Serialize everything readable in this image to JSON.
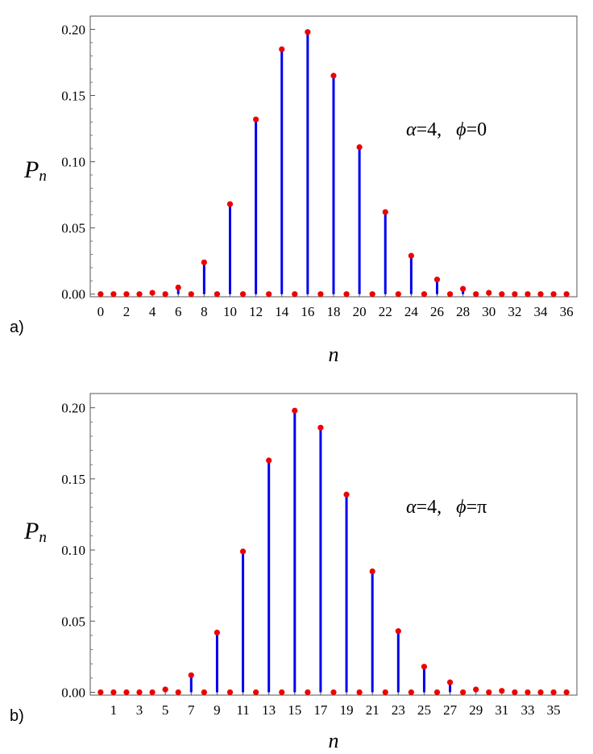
{
  "chart_data": [
    {
      "type": "stem",
      "panel_label": "a)",
      "annotation": {
        "alpha": "α",
        "alpha_value": "=4,",
        "phi": "ϕ",
        "phi_value": "=0"
      },
      "xlabel": "n",
      "ylabel": {
        "main": "P",
        "sub": "n"
      },
      "xlim": [
        -0.8,
        36.8
      ],
      "ylim": [
        -0.002,
        0.21
      ],
      "x_ticks": [
        0,
        2,
        4,
        6,
        8,
        10,
        12,
        14,
        16,
        18,
        20,
        22,
        24,
        26,
        28,
        30,
        32,
        34,
        36
      ],
      "x_tick_labels": [
        "0",
        "2",
        "4",
        "6",
        "8",
        "10",
        "12",
        "14",
        "16",
        "18",
        "20",
        "22",
        "24",
        "26",
        "28",
        "30",
        "32",
        "34",
        "36"
      ],
      "y_ticks": [
        0.0,
        0.05,
        0.1,
        0.15,
        0.2
      ],
      "y_tick_labels": [
        "0.00",
        "0.05",
        "0.10",
        "0.15",
        "0.20"
      ],
      "stem_color": "#0000ee",
      "marker_color": "#ee0000",
      "series": [
        {
          "x": [
            0,
            1,
            2,
            3,
            4,
            5,
            6,
            7,
            8,
            9,
            10,
            11,
            12,
            13,
            14,
            15,
            16,
            17,
            18,
            19,
            20,
            21,
            22,
            23,
            24,
            25,
            26,
            27,
            28,
            29,
            30,
            31,
            32,
            33,
            34,
            35,
            36
          ],
          "y": [
            0,
            0,
            0,
            0,
            0.001,
            0,
            0.005,
            0,
            0.024,
            0,
            0.068,
            0,
            0.132,
            0,
            0.185,
            0,
            0.198,
            0,
            0.165,
            0,
            0.111,
            0,
            0.062,
            0,
            0.029,
            0,
            0.011,
            0,
            0.004,
            0,
            0.001,
            0,
            0,
            0,
            0,
            0,
            0
          ]
        }
      ]
    },
    {
      "type": "stem",
      "panel_label": "b)",
      "annotation": {
        "alpha": "α",
        "alpha_value": "=4,",
        "phi": "ϕ",
        "phi_value": "=π"
      },
      "xlabel": "n",
      "ylabel": {
        "main": "P",
        "sub": "n"
      },
      "xlim": [
        -0.8,
        36.8
      ],
      "ylim": [
        -0.002,
        0.21
      ],
      "x_ticks": [
        1,
        3,
        5,
        7,
        9,
        11,
        13,
        15,
        17,
        19,
        21,
        23,
        25,
        27,
        29,
        31,
        33,
        35
      ],
      "x_tick_labels": [
        "1",
        "3",
        "5",
        "7",
        "9",
        "11",
        "13",
        "15",
        "17",
        "19",
        "21",
        "23",
        "25",
        "27",
        "29",
        "31",
        "33",
        "35"
      ],
      "y_ticks": [
        0.0,
        0.05,
        0.1,
        0.15,
        0.2
      ],
      "y_tick_labels": [
        "0.00",
        "0.05",
        "0.10",
        "0.15",
        "0.20"
      ],
      "stem_color": "#0000ee",
      "marker_color": "#ee0000",
      "series": [
        {
          "x": [
            0,
            1,
            2,
            3,
            4,
            5,
            6,
            7,
            8,
            9,
            10,
            11,
            12,
            13,
            14,
            15,
            16,
            17,
            18,
            19,
            20,
            21,
            22,
            23,
            24,
            25,
            26,
            27,
            28,
            29,
            30,
            31,
            32,
            33,
            34,
            35,
            36
          ],
          "y": [
            0,
            0,
            0,
            0,
            0,
            0.002,
            0,
            0.012,
            0,
            0.042,
            0,
            0.099,
            0,
            0.163,
            0,
            0.198,
            0,
            0.186,
            0,
            0.139,
            0,
            0.085,
            0,
            0.043,
            0,
            0.018,
            0,
            0.007,
            0,
            0.002,
            0,
            0.001,
            0,
            0,
            0,
            0,
            0
          ]
        }
      ]
    }
  ]
}
